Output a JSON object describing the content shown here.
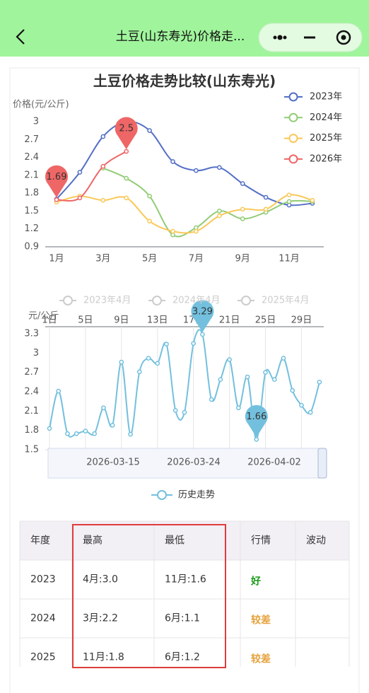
{
  "header": {
    "title": "土豆(山东寿光)价格走..."
  },
  "chart_data": [
    {
      "type": "line",
      "title": "土豆价格走势比较(山东寿光)",
      "y_label": "价格(元/公斤)",
      "categories": [
        "1月",
        null,
        "3月",
        null,
        "5月",
        null,
        "7月",
        null,
        "9月",
        null,
        "11月",
        null
      ],
      "ylim": [
        0.9,
        3
      ],
      "yticks": [
        0.9,
        1.2,
        1.5,
        1.8,
        2.1,
        2.4,
        2.7,
        3
      ],
      "smooth": true,
      "legend": "top-right",
      "series": [
        {
          "name": "2023年",
          "color": "#5470c6",
          "values": [
            1.7,
            2.15,
            2.75,
            3.0,
            2.85,
            2.33,
            2.18,
            2.23,
            1.96,
            1.73,
            1.6,
            1.63
          ]
        },
        {
          "name": "2024年",
          "color": "#91cc75",
          "values": [
            null,
            null,
            2.22,
            2.05,
            1.75,
            1.1,
            1.22,
            1.5,
            1.37,
            1.48,
            1.66,
            1.66
          ]
        },
        {
          "name": "2025年",
          "color": "#fac858",
          "values": [
            1.65,
            1.75,
            1.68,
            1.72,
            1.33,
            1.16,
            1.16,
            1.42,
            1.53,
            1.53,
            1.77,
            1.68
          ]
        },
        {
          "name": "2026年",
          "color": "#ee6666",
          "markPoint": true,
          "values": [
            1.69,
            1.72,
            2.25,
            2.5,
            null,
            null,
            null,
            null,
            null,
            null,
            null,
            null
          ]
        }
      ]
    },
    {
      "type": "line",
      "y_label": "元/公斤",
      "categories": [
        "1日",
        null,
        null,
        null,
        "5日",
        null,
        null,
        null,
        "9日",
        null,
        null,
        null,
        "13日",
        null,
        null,
        null,
        "17日",
        null,
        null,
        null,
        "21日",
        null,
        null,
        null,
        "25日",
        null,
        null,
        null,
        "29日",
        null,
        null
      ],
      "ylim": [
        1.5,
        3.3
      ],
      "yticks": [
        1.5,
        1.8,
        2.1,
        2.4,
        2.7,
        3,
        3.3
      ],
      "x_axis_position": "top",
      "grid": true,
      "smooth": true,
      "inactive_legend": [
        "2023年4月",
        "2024年4月",
        "2025年4月"
      ],
      "data_zoom": {
        "labels": [
          "2026-03-15",
          "2026-03-24",
          "2026-04-02"
        ]
      },
      "series": [
        {
          "name": "历史走势",
          "color": "#73c0de",
          "markPoint": true,
          "values": [
            1.83,
            2.41,
            1.75,
            1.75,
            1.79,
            1.75,
            2.15,
            1.88,
            2.86,
            1.74,
            2.71,
            2.92,
            2.84,
            3.14,
            2.11,
            2.08,
            3.15,
            3.29,
            2.28,
            2.59,
            2.9,
            2.15,
            2.63,
            1.66,
            2.7,
            2.59,
            2.92,
            2.42,
            2.19,
            2.08,
            2.55
          ]
        }
      ]
    }
  ],
  "table": {
    "header": [
      "年度",
      "最高",
      "最低",
      "行情",
      "波动"
    ],
    "rows": [
      [
        "2023",
        "4月:3.0",
        "11月:1.6",
        "好"
      ],
      [
        "2024",
        "3月:2.2",
        "6月:1.1",
        "较差"
      ],
      [
        "2025",
        "11月:1.8",
        "6月:1.2",
        "较差"
      ]
    ],
    "rating_colors": {
      "好": "#1a9a1a",
      "较差": "#e6a23c"
    }
  }
}
